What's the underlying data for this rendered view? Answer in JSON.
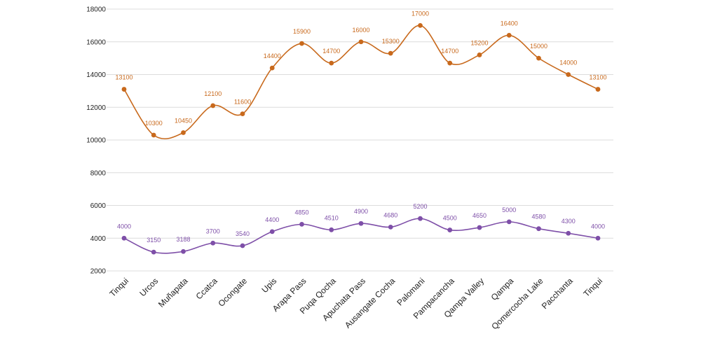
{
  "chart_data": {
    "type": "line",
    "title": "",
    "xlabel": "",
    "ylabel": "",
    "ylim": [
      2000,
      18000
    ],
    "yticks": [
      2000,
      4000,
      6000,
      8000,
      10000,
      12000,
      14000,
      16000,
      18000
    ],
    "grid": "horizontal",
    "legend": "none",
    "categories": [
      "Tinqui",
      "Urcos",
      "Muñapata",
      "Ccatca",
      "Ocongate",
      "Upis",
      "Arapa Pass",
      "Puqa Qocha",
      "Apuchata Pass",
      "Ausangate Cocha",
      "Palomani",
      "Pampacancha",
      "Qampa Valley",
      "Qampa",
      "Qomercocha Lake",
      "Pacchanta",
      "Tinqui"
    ],
    "series": [
      {
        "color": "#c8691c",
        "values": [
          13100,
          10300,
          10450,
          12100,
          11600,
          14400,
          15900,
          14700,
          16000,
          15300,
          17000,
          14700,
          15200,
          16400,
          15000,
          14000,
          13100
        ]
      },
      {
        "color": "#7e4fa8",
        "values": [
          4000,
          3150,
          3188,
          3700,
          3540,
          4400,
          4850,
          4510,
          4900,
          4680,
          5200,
          4500,
          4650,
          5000,
          4580,
          4300,
          4000
        ]
      }
    ]
  }
}
